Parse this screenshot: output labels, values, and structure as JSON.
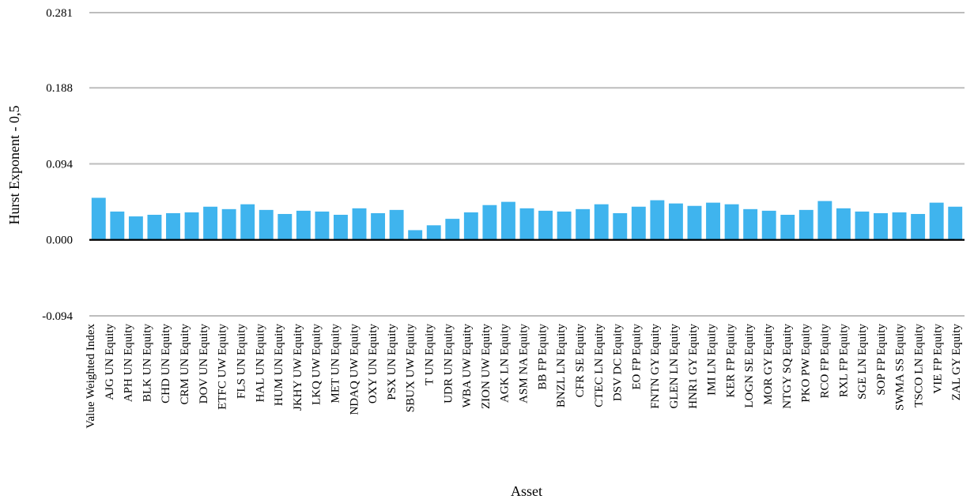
{
  "chart_data": {
    "type": "bar",
    "title": "",
    "xlabel": "Asset",
    "ylabel": "Hurst Exponent - 0,5",
    "ylim": [
      -0.094,
      0.281
    ],
    "yticks": [
      "0.281",
      "0.188",
      "0.094",
      "0.000",
      "-0.094"
    ],
    "grid": true,
    "bar_color": "#3FB4EE",
    "zero_line_color": "#000000",
    "categories": [
      "Value Weighted Index",
      "AJG UN Equity",
      "APH UN Equity",
      "BLK UN Equity",
      "CHD UN Equity",
      "CRM UN Equity",
      "DOV UN Equity",
      "ETFC UW Equity",
      "FLS UN Equity",
      "HAL UN Equity",
      "HUM UN Equity",
      "JKHY UW Equity",
      "LKQ UW Equity",
      "MET UN Equity",
      "NDAQ UW Equity",
      "OXY UN Equity",
      "PSX UN Equity",
      "SBUX UW Equity",
      "T UN Equity",
      "UDR UN Equity",
      "WBA UW Equity",
      "ZION UW Equity",
      "AGK LN Equity",
      "ASM NA Equity",
      "BB FP Equity",
      "BNZL LN Equity",
      "CFR SE Equity",
      "CTEC LN Equity",
      "DSV DC Equity",
      "EO FP Equity",
      "FNTN GY Equity",
      "GLEN LN Equity",
      "HNR1 GY Equity",
      "IMI LN Equity",
      "KER FP Equity",
      "LOGN SE Equity",
      "MOR GY Equity",
      "NTGY SQ Equity",
      "PKO PW Equity",
      "RCO FP Equity",
      "RXL FP Equity",
      "SGE LN Equity",
      "SOP FP Equity",
      "SWMA SS Equity",
      "TSCO LN Equity",
      "VIE FP Equity",
      "ZAL GY Equity"
    ],
    "values": [
      0.052,
      0.035,
      0.029,
      0.031,
      0.033,
      0.034,
      0.041,
      0.038,
      0.044,
      0.037,
      0.032,
      0.036,
      0.035,
      0.031,
      0.039,
      0.033,
      0.037,
      0.012,
      0.018,
      0.026,
      0.034,
      0.043,
      0.047,
      0.039,
      0.036,
      0.035,
      0.038,
      0.044,
      0.033,
      0.041,
      0.049,
      0.045,
      0.042,
      0.046,
      0.044,
      0.038,
      0.036,
      0.031,
      0.037,
      0.048,
      0.039,
      0.035,
      0.033,
      0.034,
      0.032,
      0.046,
      0.041
    ]
  }
}
